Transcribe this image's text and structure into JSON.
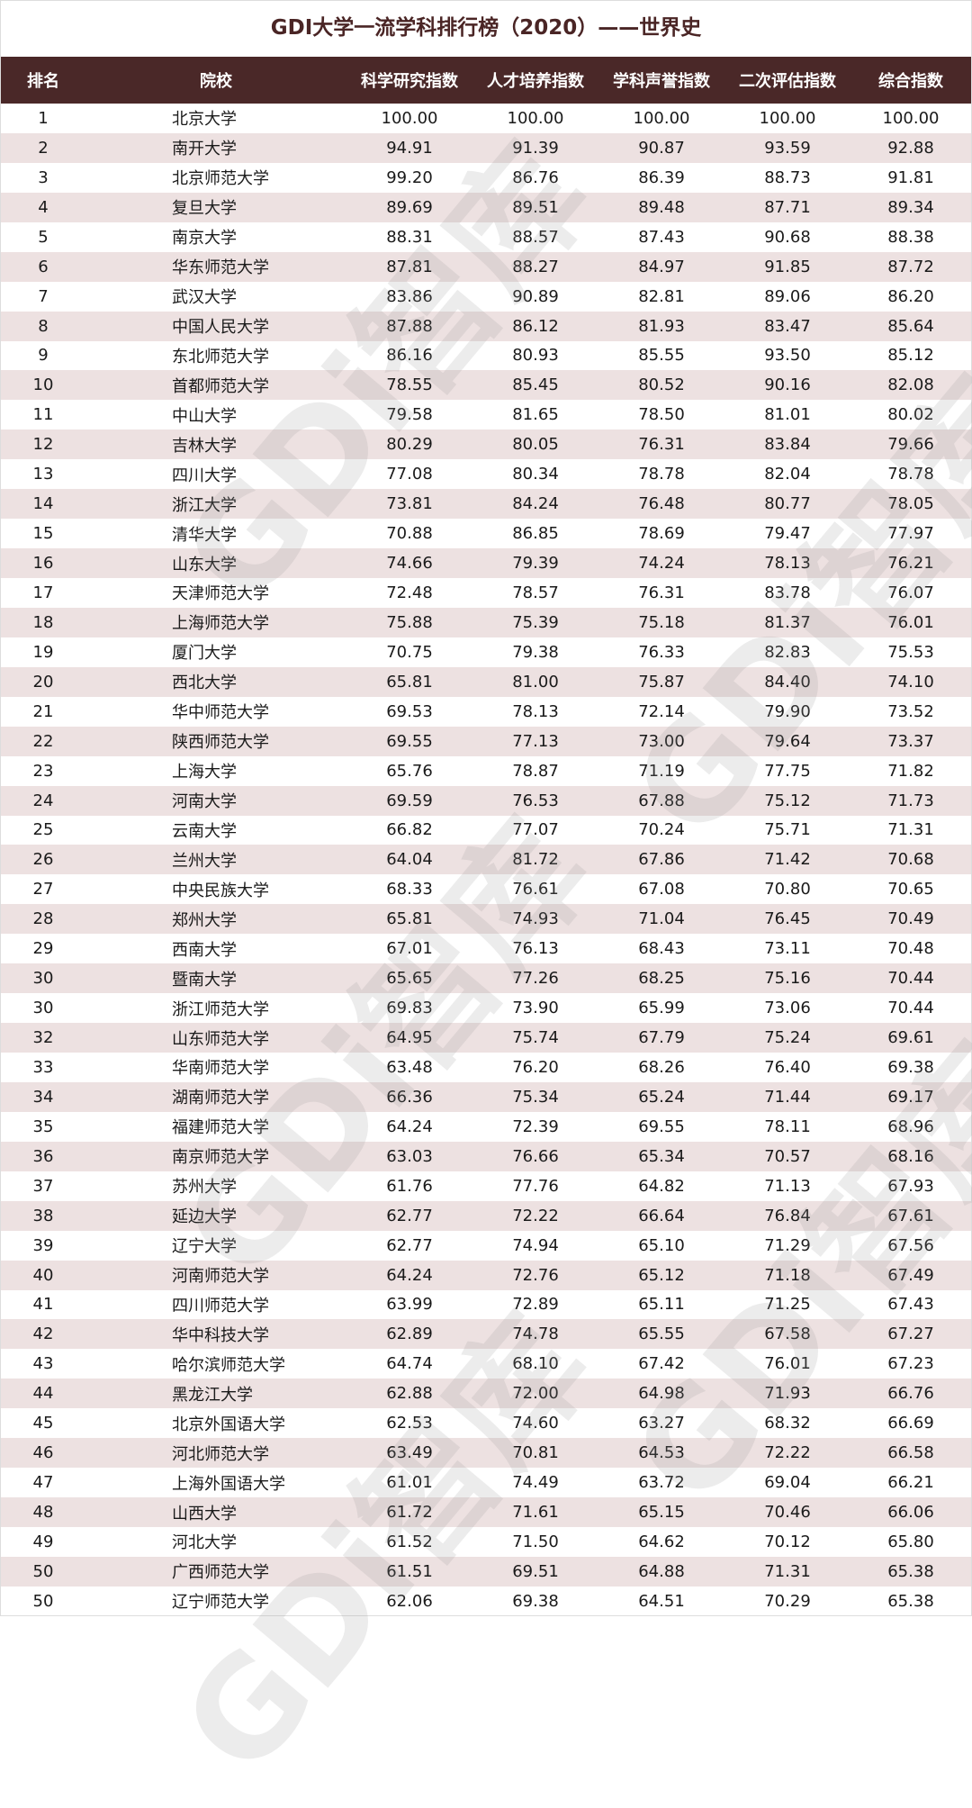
{
  "title": "GDI大学一流学科排行榜（2020）——世界史",
  "watermark": "GDi智库",
  "columns": [
    "排名",
    "院校",
    "科学研究指数",
    "人才培养指数",
    "学科声誉指数",
    "二次评估指数",
    "综合指数"
  ],
  "rows": [
    [
      "1",
      "北京大学",
      "100.00",
      "100.00",
      "100.00",
      "100.00",
      "100.00"
    ],
    [
      "2",
      "南开大学",
      "94.91",
      "91.39",
      "90.87",
      "93.59",
      "92.88"
    ],
    [
      "3",
      "北京师范大学",
      "99.20",
      "86.76",
      "86.39",
      "88.73",
      "91.81"
    ],
    [
      "4",
      "复旦大学",
      "89.69",
      "89.51",
      "89.48",
      "87.71",
      "89.34"
    ],
    [
      "5",
      "南京大学",
      "88.31",
      "88.57",
      "87.43",
      "90.68",
      "88.38"
    ],
    [
      "6",
      "华东师范大学",
      "87.81",
      "88.27",
      "84.97",
      "91.85",
      "87.72"
    ],
    [
      "7",
      "武汉大学",
      "83.86",
      "90.89",
      "82.81",
      "89.06",
      "86.20"
    ],
    [
      "8",
      "中国人民大学",
      "87.88",
      "86.12",
      "81.93",
      "83.47",
      "85.64"
    ],
    [
      "9",
      "东北师范大学",
      "86.16",
      "80.93",
      "85.55",
      "93.50",
      "85.12"
    ],
    [
      "10",
      "首都师范大学",
      "78.55",
      "85.45",
      "80.52",
      "90.16",
      "82.08"
    ],
    [
      "11",
      "中山大学",
      "79.58",
      "81.65",
      "78.50",
      "81.01",
      "80.02"
    ],
    [
      "12",
      "吉林大学",
      "80.29",
      "80.05",
      "76.31",
      "83.84",
      "79.66"
    ],
    [
      "13",
      "四川大学",
      "77.08",
      "80.34",
      "78.78",
      "82.04",
      "78.78"
    ],
    [
      "14",
      "浙江大学",
      "73.81",
      "84.24",
      "76.48",
      "80.77",
      "78.05"
    ],
    [
      "15",
      "清华大学",
      "70.88",
      "86.85",
      "78.69",
      "79.47",
      "77.97"
    ],
    [
      "16",
      "山东大学",
      "74.66",
      "79.39",
      "74.24",
      "78.13",
      "76.21"
    ],
    [
      "17",
      "天津师范大学",
      "72.48",
      "78.57",
      "76.31",
      "83.78",
      "76.07"
    ],
    [
      "18",
      "上海师范大学",
      "75.88",
      "75.39",
      "75.18",
      "81.37",
      "76.01"
    ],
    [
      "19",
      "厦门大学",
      "70.75",
      "79.38",
      "76.33",
      "82.83",
      "75.53"
    ],
    [
      "20",
      "西北大学",
      "65.81",
      "81.00",
      "75.87",
      "84.40",
      "74.10"
    ],
    [
      "21",
      "华中师范大学",
      "69.53",
      "78.13",
      "72.14",
      "79.90",
      "73.52"
    ],
    [
      "22",
      "陕西师范大学",
      "69.55",
      "77.13",
      "73.00",
      "79.64",
      "73.37"
    ],
    [
      "23",
      "上海大学",
      "65.76",
      "78.87",
      "71.19",
      "77.75",
      "71.82"
    ],
    [
      "24",
      "河南大学",
      "69.59",
      "76.53",
      "67.88",
      "75.12",
      "71.73"
    ],
    [
      "25",
      "云南大学",
      "66.82",
      "77.07",
      "70.24",
      "75.71",
      "71.31"
    ],
    [
      "26",
      "兰州大学",
      "64.04",
      "81.72",
      "67.86",
      "71.42",
      "70.68"
    ],
    [
      "27",
      "中央民族大学",
      "68.33",
      "76.61",
      "67.08",
      "70.80",
      "70.65"
    ],
    [
      "28",
      "郑州大学",
      "65.81",
      "74.93",
      "71.04",
      "76.45",
      "70.49"
    ],
    [
      "29",
      "西南大学",
      "67.01",
      "76.13",
      "68.43",
      "73.11",
      "70.48"
    ],
    [
      "30",
      "暨南大学",
      "65.65",
      "77.26",
      "68.25",
      "75.16",
      "70.44"
    ],
    [
      "30",
      "浙江师范大学",
      "69.83",
      "73.90",
      "65.99",
      "73.06",
      "70.44"
    ],
    [
      "32",
      "山东师范大学",
      "64.95",
      "75.74",
      "67.79",
      "75.24",
      "69.61"
    ],
    [
      "33",
      "华南师范大学",
      "63.48",
      "76.20",
      "68.26",
      "76.40",
      "69.38"
    ],
    [
      "34",
      "湖南师范大学",
      "66.36",
      "75.34",
      "65.24",
      "71.44",
      "69.17"
    ],
    [
      "35",
      "福建师范大学",
      "64.24",
      "72.39",
      "69.55",
      "78.11",
      "68.96"
    ],
    [
      "36",
      "南京师范大学",
      "63.03",
      "76.66",
      "65.34",
      "70.57",
      "68.16"
    ],
    [
      "37",
      "苏州大学",
      "61.76",
      "77.76",
      "64.82",
      "71.13",
      "67.93"
    ],
    [
      "38",
      "延边大学",
      "62.77",
      "72.22",
      "66.64",
      "76.84",
      "67.61"
    ],
    [
      "39",
      "辽宁大学",
      "62.77",
      "74.94",
      "65.10",
      "71.29",
      "67.56"
    ],
    [
      "40",
      "河南师范大学",
      "64.24",
      "72.76",
      "65.12",
      "71.18",
      "67.49"
    ],
    [
      "41",
      "四川师范大学",
      "63.99",
      "72.89",
      "65.11",
      "71.25",
      "67.43"
    ],
    [
      "42",
      "华中科技大学",
      "62.89",
      "74.78",
      "65.55",
      "67.58",
      "67.27"
    ],
    [
      "43",
      "哈尔滨师范大学",
      "64.74",
      "68.10",
      "67.42",
      "76.01",
      "67.23"
    ],
    [
      "44",
      "黑龙江大学",
      "62.88",
      "72.00",
      "64.98",
      "71.93",
      "66.76"
    ],
    [
      "45",
      "北京外国语大学",
      "62.53",
      "74.60",
      "63.27",
      "68.32",
      "66.69"
    ],
    [
      "46",
      "河北师范大学",
      "63.49",
      "70.81",
      "64.53",
      "72.22",
      "66.58"
    ],
    [
      "47",
      "上海外国语大学",
      "61.01",
      "74.49",
      "63.72",
      "69.04",
      "66.21"
    ],
    [
      "48",
      "山西大学",
      "61.72",
      "71.61",
      "65.15",
      "70.46",
      "66.06"
    ],
    [
      "49",
      "河北大学",
      "61.52",
      "71.50",
      "64.62",
      "70.12",
      "65.80"
    ],
    [
      "50",
      "广西师范大学",
      "61.51",
      "69.51",
      "64.88",
      "71.31",
      "65.38"
    ],
    [
      "50",
      "辽宁师范大学",
      "62.06",
      "69.38",
      "64.51",
      "70.29",
      "65.38"
    ]
  ],
  "colors": {
    "header": "#4a2828",
    "stripe": "#ede1e1",
    "title": "#4a2525"
  }
}
